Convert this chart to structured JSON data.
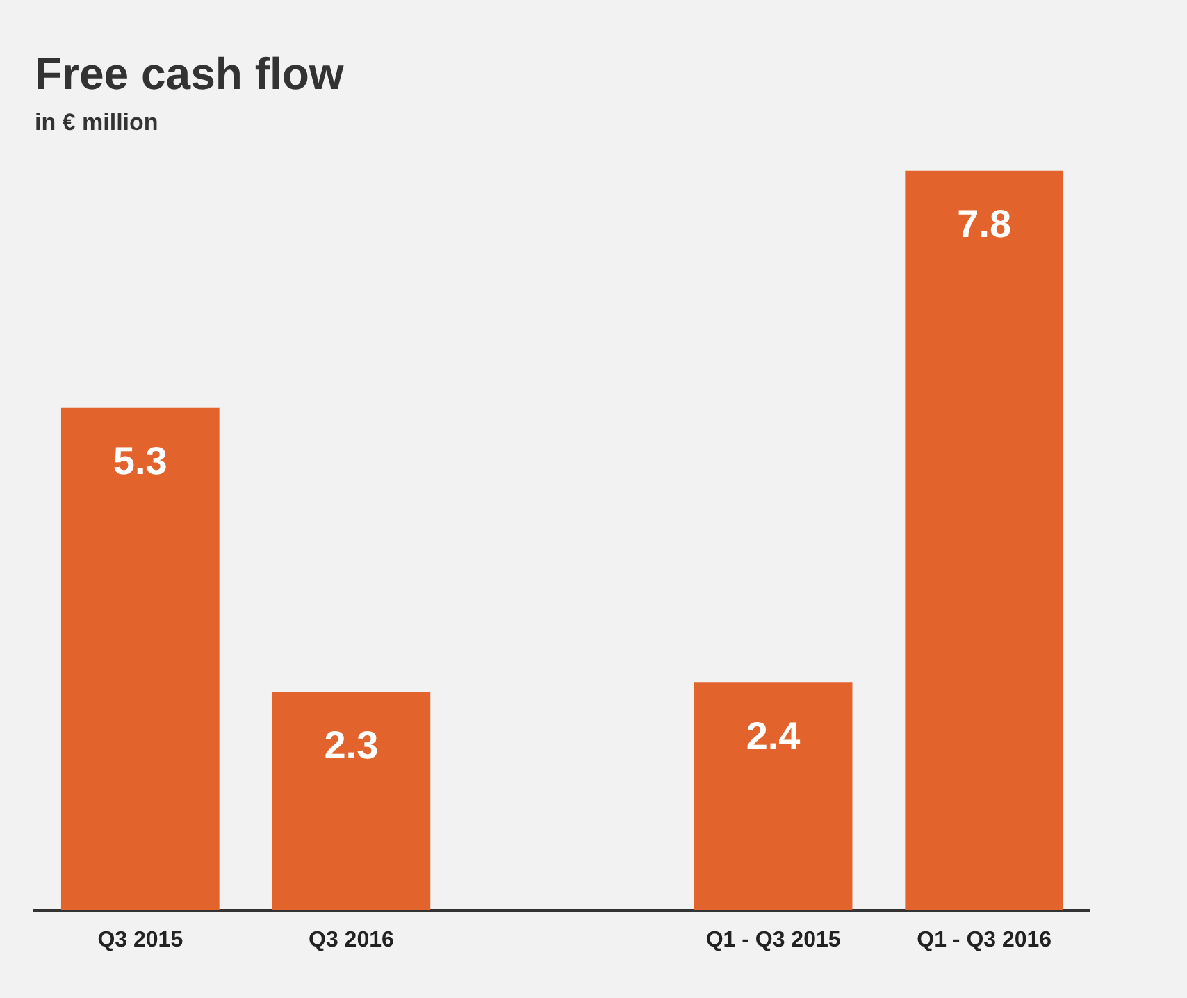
{
  "chart_data": {
    "type": "bar",
    "title": "Free cash flow",
    "subtitle": "in € million",
    "categories": [
      "Q3 2015",
      "Q3 2016",
      null,
      "Q1 - Q3 2015",
      "Q1 - Q3 2016"
    ],
    "values": [
      5.3,
      2.3,
      null,
      2.4,
      7.8
    ],
    "color": "#e2632b",
    "data_labels": true,
    "grid": false,
    "legend": false
  }
}
